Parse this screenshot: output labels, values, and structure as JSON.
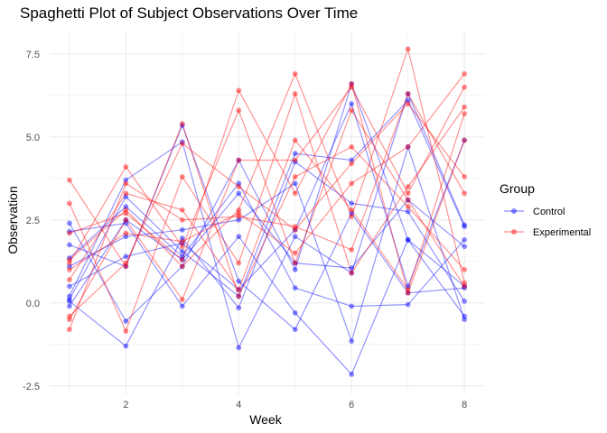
{
  "chart_data": {
    "type": "line",
    "title": "Spaghetti Plot of Subject Observations Over Time",
    "xlabel": "Week",
    "ylabel": "Observation",
    "xlim": [
      0.65,
      8.35
    ],
    "ylim": [
      -2.75,
      8.2
    ],
    "x_ticks": [
      2,
      4,
      6,
      8
    ],
    "x_tick_labels": [
      "2",
      "4",
      "6",
      "8"
    ],
    "y_ticks": [
      -2.5,
      0.0,
      2.5,
      5.0,
      7.5
    ],
    "y_tick_labels": [
      "-2.5",
      "0.0",
      "2.5",
      "5.0",
      "7.5"
    ],
    "grid": true,
    "legend_position": "right",
    "legend": {
      "title": "Group",
      "items": [
        {
          "label": "Control",
          "color": "#0000ff"
        },
        {
          "label": "Experimental",
          "color": "#ff0000"
        }
      ]
    },
    "x": [
      1,
      2,
      3,
      4,
      5,
      6,
      7,
      8
    ],
    "groups": [
      {
        "name": "Control",
        "color": "#0000ff",
        "subjects": [
          [
            2.4,
            -0.55,
            1.1,
            4.3,
            1.0,
            6.6,
            1.9,
            0.5
          ],
          [
            0.2,
            3.7,
            4.85,
            -1.35,
            2.0,
            0.9,
            6.3,
            2.35
          ],
          [
            -0.1,
            2.5,
            1.3,
            3.3,
            1.2,
            1.05,
            3.1,
            1.7
          ],
          [
            1.75,
            1.1,
            5.35,
            0.65,
            -0.8,
            2.7,
            0.3,
            0.45
          ],
          [
            1.1,
            2.0,
            2.2,
            2.5,
            3.6,
            -1.15,
            4.7,
            -0.5
          ],
          [
            0.05,
            -1.3,
            1.95,
            -0.15,
            4.25,
            3.0,
            2.75,
            0.05
          ],
          [
            0.5,
            1.4,
            1.8,
            0.4,
            2.2,
            6.0,
            0.5,
            4.9
          ],
          [
            1.35,
            2.9,
            1.4,
            3.6,
            0.45,
            -0.1,
            -0.05,
            1.9
          ],
          [
            0.1,
            3.2,
            1.55,
            0.2,
            4.5,
            4.3,
            6.1,
            2.3
          ],
          [
            2.15,
            2.4,
            -0.1,
            2.0,
            -0.3,
            -2.15,
            1.9,
            -0.4
          ]
        ]
      },
      {
        "name": "Experimental",
        "color": "#ff0000",
        "subjects": [
          [
            3.7,
            1.1,
            5.4,
            0.2,
            3.8,
            4.7,
            2.9,
            1.0
          ],
          [
            3.0,
            -0.85,
            3.8,
            1.2,
            6.3,
            0.9,
            3.5,
            5.9
          ],
          [
            -0.8,
            3.6,
            2.5,
            2.6,
            2.3,
            1.6,
            6.3,
            3.3
          ],
          [
            1.2,
            4.1,
            1.7,
            5.8,
            1.2,
            5.8,
            3.1,
            0.5
          ],
          [
            0.7,
            3.3,
            2.8,
            0.4,
            4.9,
            2.8,
            0.4,
            5.7
          ],
          [
            2.1,
            2.7,
            1.3,
            6.4,
            3.3,
            6.6,
            0.3,
            4.9
          ],
          [
            -0.4,
            1.2,
            4.8,
            3.5,
            2.2,
            4.2,
            6.0,
            3.8
          ],
          [
            1.3,
            2.8,
            1.1,
            2.8,
            6.9,
            2.6,
            7.65,
            0.6
          ],
          [
            1.0,
            2.1,
            1.85,
            2.7,
            1.5,
            3.6,
            4.7,
            6.9
          ],
          [
            -0.5,
            2.5,
            0.1,
            4.3,
            4.3,
            6.5,
            3.3,
            6.5
          ]
        ]
      }
    ]
  }
}
